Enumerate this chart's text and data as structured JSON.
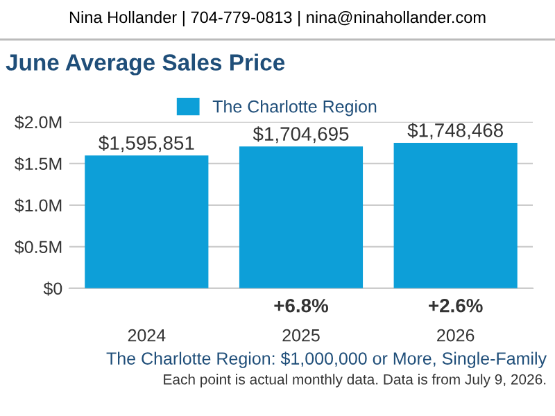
{
  "chart_data": {
    "type": "bar",
    "title": "June Average Sales Price",
    "subtitle": "Nina Hollander | 704-779-0813 | nina@ninahollander.com",
    "categories": [
      "2024",
      "2025",
      "2026"
    ],
    "series": [
      {
        "name": "The Charlotte Region",
        "color": "#0d9fd8",
        "values": [
          1595851,
          1704695,
          1748468
        ],
        "value_labels": [
          "$1,595,851",
          "$1,704,695",
          "$1,748,468"
        ]
      }
    ],
    "ylim": [
      0,
      2000000
    ],
    "yticks": [
      {
        "value": 0,
        "label": "$0"
      },
      {
        "value": 500000,
        "label": "$0.5M"
      },
      {
        "value": 1000000,
        "label": "$1.0M"
      },
      {
        "value": 1500000,
        "label": "$1.5M"
      },
      {
        "value": 2000000,
        "label": "$2.0M"
      }
    ],
    "grid": "y",
    "legend": "top",
    "annotations": [
      "+6.8%",
      "+2.6%",
      "The Charlotte Region: $1,000,000 or More, Single-Family",
      "Each point is actual monthly data. Data is from July 9, 2026."
    ]
  }
}
